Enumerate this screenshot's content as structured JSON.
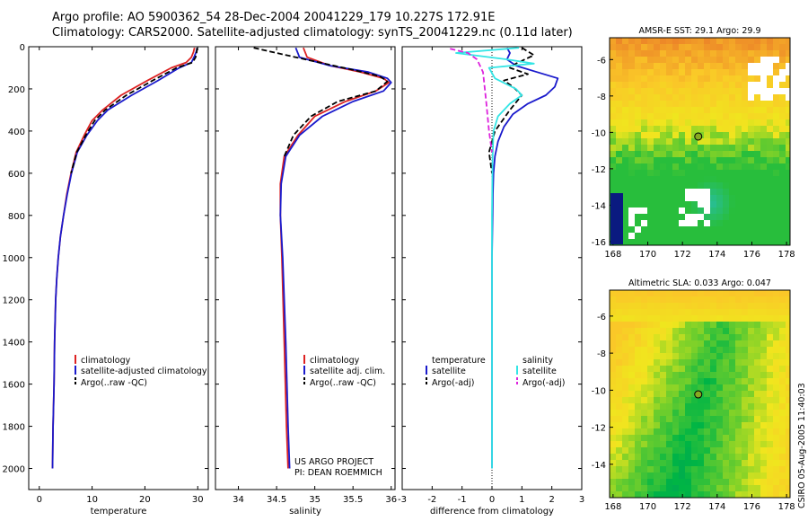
{
  "header": {
    "line1": "Argo profile: AO 5900362_54 28-Dec-2004 20041229_179 10.227S 172.91E",
    "line2": "Climatology: CARS2000. Satellite-adjusted climatology: synTS_20041229.nc (0.11d later)"
  },
  "colors": {
    "climatology": "#dd2222",
    "satellite": "#1a1acc",
    "argo": "#000000",
    "cyan": "#33e5e5",
    "magenta": "#dd22dd"
  },
  "depth_axis": {
    "ticks": [
      0,
      200,
      400,
      600,
      800,
      1000,
      1200,
      1400,
      1600,
      1800,
      2000
    ],
    "ylim": [
      0,
      2100
    ]
  },
  "chart_data": [
    {
      "type": "line",
      "id": "temperature",
      "xlabel": "temperature",
      "xlim": [
        -2,
        32
      ],
      "xticks": [
        0,
        10,
        20,
        30
      ],
      "legend": [
        "climatology",
        "satellite-adjusted climatology",
        "Argo(..raw -QC)"
      ],
      "series": [
        {
          "name": "climatology",
          "style": "climatology",
          "x": [
            29.4,
            29.2,
            28.8,
            27.8,
            25.0,
            20.5,
            15.5,
            12.0,
            10.0,
            8.5,
            7.0,
            6.0,
            5.2,
            4.6,
            4.0,
            3.6,
            3.3,
            3.1,
            2.9,
            2.8,
            2.6,
            2.5
          ],
          "y": [
            5,
            25,
            50,
            75,
            100,
            160,
            230,
            300,
            350,
            420,
            500,
            600,
            700,
            800,
            900,
            1000,
            1100,
            1200,
            1400,
            1600,
            1800,
            2000
          ]
        },
        {
          "name": "satellite-adjusted climatology",
          "style": "satellite",
          "x": [
            29.9,
            29.7,
            29.3,
            28.8,
            26.5,
            22.5,
            17.5,
            13.0,
            11.0,
            9.0,
            7.2,
            6.1,
            5.3,
            4.6,
            4.0,
            3.6,
            3.3,
            3.1,
            2.9,
            2.8,
            2.6,
            2.5
          ],
          "y": [
            5,
            25,
            50,
            75,
            100,
            160,
            230,
            300,
            350,
            420,
            500,
            600,
            700,
            800,
            900,
            1000,
            1100,
            1200,
            1400,
            1600,
            1800,
            2000
          ]
        },
        {
          "name": "Argo(..raw -QC)",
          "style": "argo",
          "x": [
            29.9,
            29.8,
            29.6,
            29.0,
            26.0,
            21.5,
            16.5,
            12.5,
            10.5,
            8.8,
            7.1,
            6.0
          ],
          "y": [
            5,
            25,
            50,
            75,
            100,
            160,
            230,
            300,
            350,
            420,
            500,
            600
          ]
        }
      ]
    },
    {
      "type": "line",
      "id": "salinity",
      "xlabel": "salinity",
      "xlim": [
        33.7,
        36.05
      ],
      "xticks": [
        34,
        34.5,
        35,
        35.5,
        36
      ],
      "legend": [
        "climatology",
        "satellite adj. clim.",
        "Argo(..raw -QC)"
      ],
      "annotation": [
        "US ARGO PROJECT",
        "PI: DEAN ROEMMICH"
      ],
      "series": [
        {
          "name": "climatology",
          "style": "climatology",
          "x": [
            34.85,
            34.9,
            35.2,
            35.6,
            35.9,
            35.97,
            35.8,
            35.4,
            35.0,
            34.78,
            34.6,
            34.55,
            34.55,
            34.57,
            34.6,
            34.63,
            34.65
          ],
          "y": [
            5,
            50,
            90,
            120,
            150,
            170,
            210,
            260,
            330,
            420,
            520,
            650,
            800,
            1000,
            1400,
            1800,
            2000
          ]
        },
        {
          "name": "satellite adj. clim.",
          "style": "satellite",
          "x": [
            34.75,
            34.8,
            35.2,
            35.7,
            35.95,
            36.0,
            35.9,
            35.5,
            35.1,
            34.8,
            34.62,
            34.56,
            34.55,
            34.58,
            34.62,
            34.65,
            34.67
          ],
          "y": [
            5,
            50,
            90,
            120,
            150,
            170,
            210,
            260,
            330,
            420,
            520,
            650,
            800,
            1000,
            1400,
            1800,
            2000
          ]
        },
        {
          "name": "Argo(..raw -QC)",
          "style": "argo",
          "x": [
            34.2,
            34.5,
            35.0,
            35.5,
            35.85,
            35.95,
            35.8,
            35.3,
            34.95,
            34.72,
            34.6
          ],
          "y": [
            5,
            30,
            70,
            110,
            140,
            165,
            210,
            260,
            330,
            420,
            520
          ]
        }
      ]
    },
    {
      "type": "line",
      "id": "difference",
      "xlabel": "difference from climatology",
      "xlim": [
        -3,
        3
      ],
      "xticks": [
        -3,
        -2,
        -1,
        0,
        1,
        2,
        3
      ],
      "legend": [
        "temperature",
        "satellite",
        "Argo(-adj)",
        "salinity",
        "satellite",
        "Argo(-adj)"
      ],
      "series": [
        {
          "name": "temperature satellite",
          "style": "satellite",
          "x": [
            0.5,
            0.6,
            0.5,
            0.8,
            1.5,
            2.2,
            2.1,
            1.8,
            1.2,
            0.7,
            0.4,
            0.2,
            0.1,
            0.05,
            0.03,
            0.02,
            0.0,
            0.0,
            0.0
          ],
          "y": [
            5,
            30,
            60,
            90,
            120,
            150,
            190,
            230,
            270,
            320,
            380,
            450,
            520,
            600,
            700,
            800,
            1000,
            1500,
            2000
          ]
        },
        {
          "name": "temperature Argo(-adj)",
          "style": "argo",
          "x": [
            1.0,
            1.4,
            0.8,
            0.6,
            1.2,
            0.4,
            0.7,
            1.0,
            0.6,
            0.1,
            -0.1,
            0.0
          ],
          "y": [
            5,
            40,
            80,
            100,
            130,
            160,
            190,
            230,
            300,
            400,
            500,
            600
          ]
        },
        {
          "name": "salinity satellite",
          "style": "cyan",
          "x": [
            0.9,
            -1.2,
            0.5,
            1.4,
            -0.1,
            0.1,
            0.8,
            1.0,
            0.6,
            0.2,
            0.05,
            0.02,
            0.0,
            0.0
          ],
          "y": [
            5,
            30,
            60,
            80,
            100,
            150,
            200,
            230,
            270,
            330,
            400,
            520,
            800,
            2000
          ]
        },
        {
          "name": "salinity Argo(-adj)",
          "style": "magenta",
          "x": [
            -1.4,
            -0.8,
            -0.5,
            -0.3,
            -0.2,
            -0.1,
            0.0
          ],
          "y": [
            10,
            30,
            60,
            120,
            250,
            400,
            500
          ]
        }
      ]
    },
    {
      "type": "heatmap",
      "id": "sst_map",
      "title": "AMSR-E SST: 29.1 Argo: 29.9",
      "xticks": [
        168,
        170,
        172,
        174,
        176,
        178
      ],
      "yticks": [
        -6,
        -8,
        -10,
        -12,
        -14,
        -16
      ],
      "xlim": [
        167.8,
        178.2
      ],
      "ylim": [
        -16.2,
        -4.8
      ],
      "marker": {
        "lon": 172.91,
        "lat": -10.227
      }
    },
    {
      "type": "heatmap",
      "id": "sla_map",
      "title": "Altimetric SLA: 0.033 Argo: 0.047",
      "xticks": [
        168,
        170,
        172,
        174,
        176,
        178
      ],
      "yticks": [
        -6,
        -8,
        -10,
        -12,
        -14
      ],
      "xlim": [
        167.8,
        178.2
      ],
      "ylim": [
        -15.8,
        -4.6
      ],
      "marker": {
        "lon": 172.91,
        "lat": -10.227
      }
    }
  ],
  "stamp": "CSIRO 05-Aug-2005 11:40:03"
}
